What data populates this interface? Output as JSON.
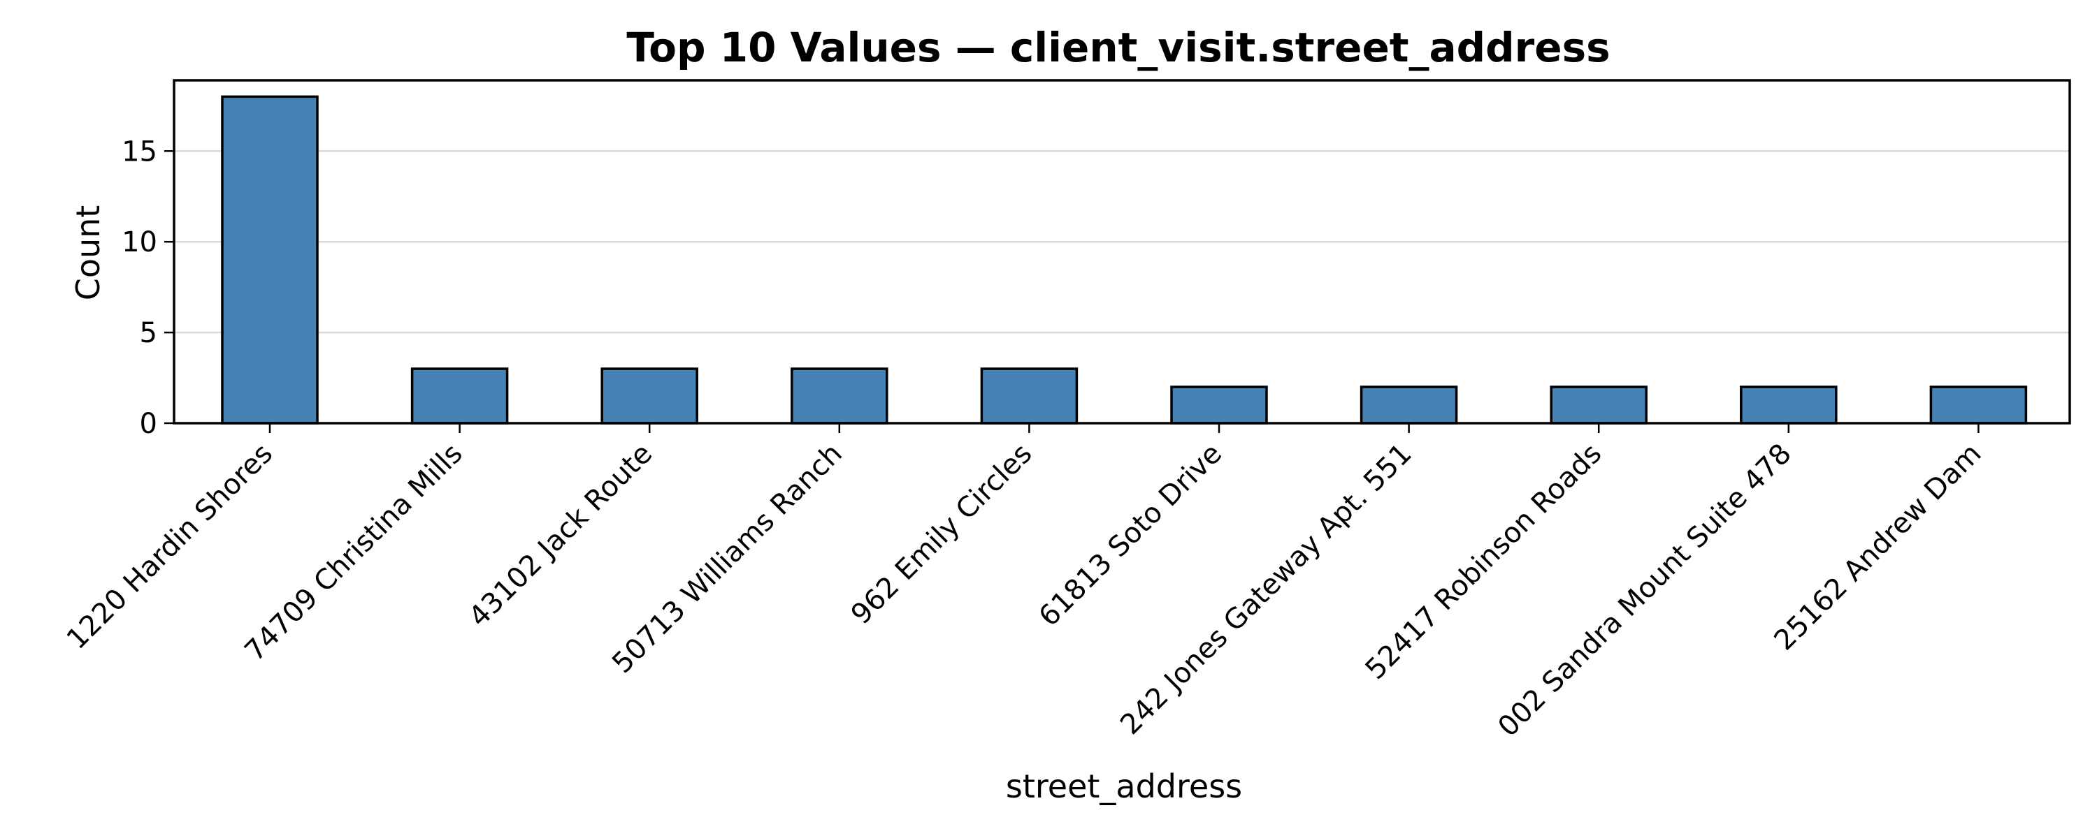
{
  "chart_data": {
    "type": "bar",
    "title": "Top 10 Values — client_visit.street_address",
    "xlabel": "street_address",
    "ylabel": "Count",
    "categories": [
      "1220 Hardin Shores",
      "74709 Christina Mills",
      "43102 Jack Route",
      "50713 Williams Ranch",
      "962 Emily Circles",
      "61813 Soto Drive",
      "242 Jones Gateway Apt. 551",
      "52417 Robinson Roads",
      "002 Sandra Mount Suite 478",
      "25162 Andrew Dam"
    ],
    "values": [
      18,
      3,
      3,
      3,
      3,
      2,
      2,
      2,
      2,
      2
    ],
    "ylim": [
      0,
      18.9
    ],
    "yticks": [
      0,
      5,
      10,
      15
    ],
    "bar_color": "#4682b4",
    "edge_color": "#000000",
    "grid": "y-axis horizontal lines",
    "legend": "none"
  }
}
